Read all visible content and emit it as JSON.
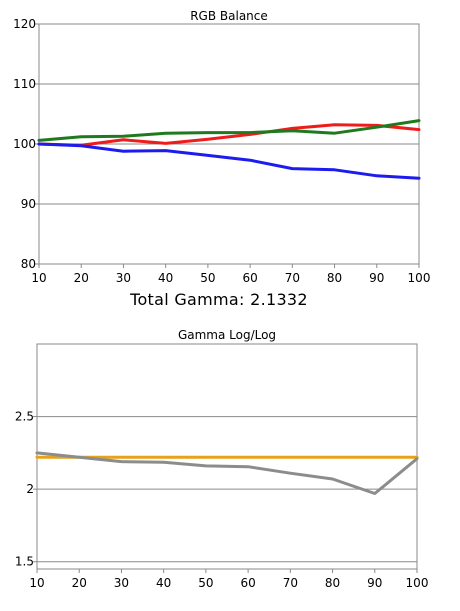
{
  "chart_data": [
    {
      "type": "line",
      "title": "RGB Balance",
      "xlabel": "",
      "ylabel": "",
      "x": [
        10,
        20,
        30,
        40,
        50,
        60,
        70,
        80,
        90,
        100
      ],
      "xlim": [
        10,
        100
      ],
      "ylim": [
        80,
        120
      ],
      "xticks": [
        "10",
        "20",
        "30",
        "40",
        "50",
        "60",
        "70",
        "80",
        "90",
        "100"
      ],
      "yticks": [
        "80",
        "90",
        "100",
        "110",
        "120"
      ],
      "grid": "horizontal",
      "legend": "none",
      "series": [
        {
          "color": "#ee1c1c",
          "values": [
            100.0,
            99.8,
            100.7,
            100.1,
            100.8,
            101.6,
            102.6,
            103.2,
            103.1,
            102.4
          ]
        },
        {
          "color": "#1f7a1f",
          "values": [
            100.6,
            101.2,
            101.3,
            101.8,
            101.9,
            101.9,
            102.2,
            101.8,
            102.8,
            103.9
          ]
        },
        {
          "color": "#1c1cee",
          "values": [
            100.0,
            99.7,
            98.8,
            98.9,
            98.1,
            97.3,
            95.9,
            95.7,
            94.7,
            94.3
          ]
        }
      ]
    },
    {
      "type": "line",
      "title": "Gamma Log/Log",
      "xlabel": "",
      "ylabel": "",
      "x": [
        10,
        20,
        30,
        40,
        50,
        60,
        70,
        80,
        90,
        100
      ],
      "xlim": [
        10,
        100
      ],
      "ylim": [
        1.45,
        3.0
      ],
      "xticks": [
        "10",
        "20",
        "30",
        "40",
        "50",
        "60",
        "70",
        "80",
        "90",
        "100"
      ],
      "yticks": [
        "1.5",
        "2",
        "2.5"
      ],
      "grid": "horizontal",
      "legend": "none",
      "series": [
        {
          "color": "#e6a21a",
          "values": [
            2.22,
            2.22,
            2.22,
            2.22,
            2.22,
            2.22,
            2.22,
            2.22,
            2.22,
            2.22
          ]
        },
        {
          "color": "#8c8c8c",
          "values": [
            2.25,
            2.22,
            2.19,
            2.185,
            2.16,
            2.155,
            2.11,
            2.07,
            1.97,
            2.21
          ]
        }
      ]
    }
  ],
  "gamma_summary": "Total Gamma: 2.1332"
}
